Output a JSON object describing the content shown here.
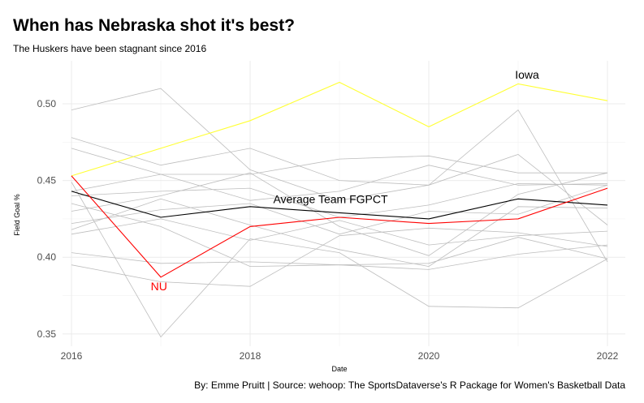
{
  "title": "When has Nebraska shot it's best?",
  "subtitle": "The Huskers have been stagnant since 2016",
  "caption": "By: Emme Pruitt  |  Source: wehoop: The SportsDataverse's R Package for Women's Basketball Data",
  "chart_data": {
    "type": "line",
    "xlabel": "Date",
    "ylabel": "Field Goal %",
    "xlim": [
      2015.9,
      2022.2
    ],
    "ylim": [
      0.342,
      0.528
    ],
    "x_ticks": [
      2016,
      2018,
      2020,
      2022
    ],
    "x_tick_labels": [
      "2016",
      "2018",
      "2020",
      "2022"
    ],
    "y_ticks": [
      0.35,
      0.4,
      0.45,
      0.5
    ],
    "y_tick_labels": [
      "0.35",
      "0.40",
      "0.45",
      "0.50"
    ],
    "grid": true,
    "x": [
      2016,
      2017,
      2018,
      2019,
      2020,
      2021,
      2022
    ],
    "background_series_color": "#bdbdbd",
    "background_series": [
      [
        0.496,
        0.51,
        0.457,
        0.437,
        0.447,
        0.496,
        0.397
      ],
      [
        0.478,
        0.46,
        0.471,
        0.45,
        0.447,
        0.467,
        0.421
      ],
      [
        0.471,
        0.454,
        0.454,
        0.464,
        0.466,
        0.455,
        0.455
      ],
      [
        0.443,
        0.454,
        0.437,
        0.443,
        0.46,
        0.447,
        0.448
      ],
      [
        0.44,
        0.443,
        0.445,
        0.426,
        0.434,
        0.448,
        0.447
      ],
      [
        0.43,
        0.44,
        0.455,
        0.42,
        0.401,
        0.441,
        0.455
      ],
      [
        0.422,
        0.431,
        0.435,
        0.415,
        0.43,
        0.428,
        0.447
      ],
      [
        0.418,
        0.438,
        0.421,
        0.405,
        0.394,
        0.433,
        0.432
      ],
      [
        0.415,
        0.425,
        0.411,
        0.424,
        0.408,
        0.414,
        0.417
      ],
      [
        0.403,
        0.396,
        0.397,
        0.395,
        0.392,
        0.402,
        0.408
      ],
      [
        0.395,
        0.384,
        0.381,
        0.414,
        0.419,
        0.416,
        0.407
      ],
      [
        0.449,
        0.348,
        0.412,
        0.403,
        0.368,
        0.367,
        0.399
      ],
      [
        0.435,
        0.42,
        0.394,
        0.395,
        0.396,
        0.413,
        0.399
      ]
    ],
    "highlight_series": [
      {
        "name": "Iowa",
        "color": "#ffff33",
        "values": [
          0.453,
          0.471,
          0.489,
          0.514,
          0.485,
          0.513,
          0.502
        ]
      },
      {
        "name": "Average Team FGPCT",
        "color": "#000000",
        "values": [
          0.443,
          0.426,
          0.433,
          0.429,
          0.425,
          0.438,
          0.434
        ]
      },
      {
        "name": "NU",
        "color": "#ff0000",
        "values": [
          0.453,
          0.387,
          0.42,
          0.426,
          0.422,
          0.425,
          0.445
        ]
      }
    ],
    "annotations": [
      {
        "text": "Iowa",
        "x": 2021.1,
        "y": 0.519,
        "color": "#000000"
      },
      {
        "text": "Average Team FGPCT",
        "x": 2018.9,
        "y": 0.438,
        "color": "#000000"
      },
      {
        "text": "NU",
        "x": 2016.98,
        "y": 0.381,
        "color": "#ff0000"
      }
    ]
  }
}
